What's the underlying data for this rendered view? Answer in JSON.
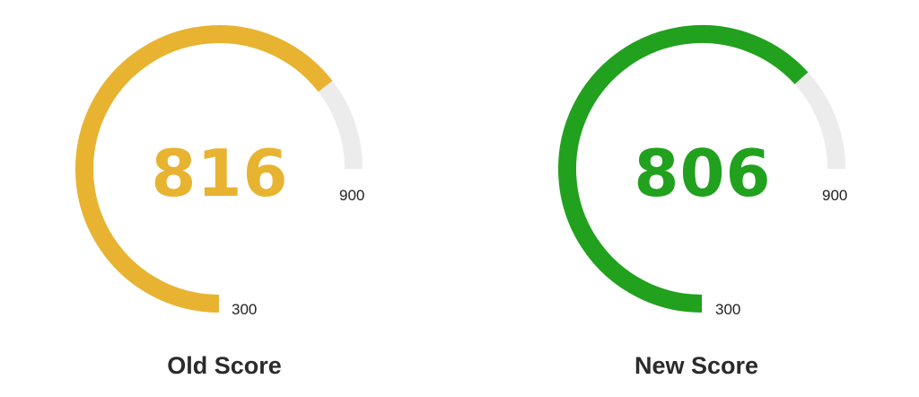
{
  "colors": {
    "track": "#ececec",
    "old_accent": "#e8b330",
    "new_accent": "#21a11e"
  },
  "gauges": [
    {
      "id": "old",
      "title": "Old Score",
      "score": "816",
      "min_label": "300",
      "max_label": "900",
      "min": 300,
      "max": 900,
      "value": 816,
      "accent": "#e8b330"
    },
    {
      "id": "new",
      "title": "New Score",
      "score": "806",
      "min_label": "300",
      "max_label": "900",
      "min": 300,
      "max": 900,
      "value": 806,
      "accent": "#21a11e"
    }
  ]
}
